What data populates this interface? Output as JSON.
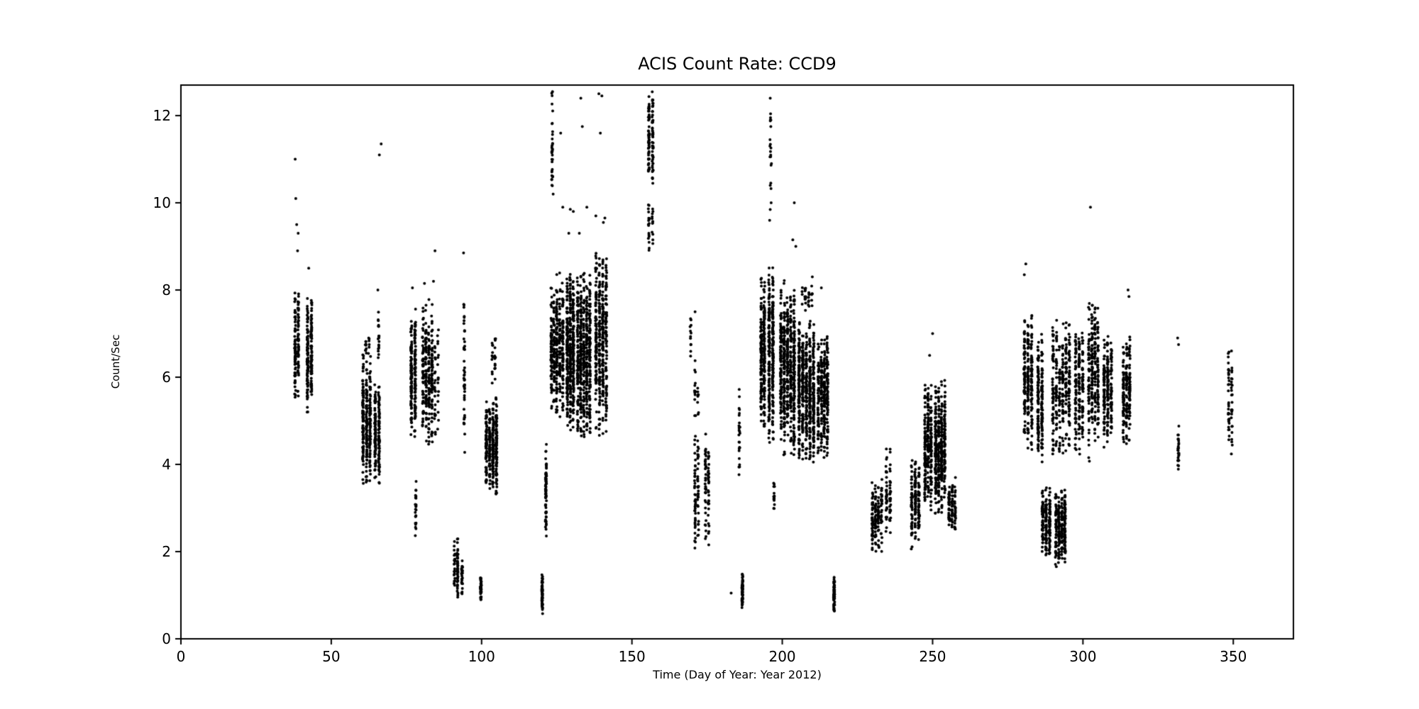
{
  "chart_data": {
    "type": "scatter",
    "title": "ACIS Count Rate: CCD9",
    "xlabel": "Time (Day of Year: Year 2012)",
    "ylabel": "Count/Sec",
    "xlim": [
      0,
      370
    ],
    "ylim": [
      0,
      12.7
    ],
    "xticks": [
      0,
      50,
      100,
      150,
      200,
      250,
      300,
      350
    ],
    "yticks": [
      0,
      2,
      4,
      6,
      8,
      10,
      12
    ],
    "grid": false,
    "legend": null,
    "marker": {
      "shape": "point",
      "color": "#000000",
      "radius_px": 2
    },
    "cluster_fields": [
      "x_min_day",
      "x_max_day",
      "y_min_cps",
      "y_max_cps",
      "n_points"
    ],
    "series": [
      {
        "name": "CCD9 count rate",
        "representation": "cluster-summary",
        "clusters": [
          [
            37.5,
            39.5,
            5.2,
            8.2,
            130
          ],
          [
            41.5,
            44.0,
            5.0,
            8.0,
            190
          ],
          [
            60.0,
            63.5,
            3.4,
            6.6,
            260
          ],
          [
            61.0,
            63.0,
            6.5,
            7.0,
            15
          ],
          [
            64.0,
            66.5,
            3.4,
            5.9,
            160
          ],
          [
            65.0,
            66.5,
            6.2,
            7.9,
            18
          ],
          [
            76.0,
            78.5,
            4.4,
            7.7,
            200
          ],
          [
            77.6,
            78.6,
            2.2,
            3.7,
            25
          ],
          [
            80.0,
            84.0,
            4.3,
            7.8,
            260
          ],
          [
            84.0,
            86.0,
            4.6,
            7.2,
            40
          ],
          [
            90.5,
            92.5,
            0.9,
            2.4,
            70
          ],
          [
            93.0,
            94.0,
            1.0,
            1.9,
            25
          ],
          [
            93.5,
            95.0,
            4.0,
            8.3,
            45
          ],
          [
            99.0,
            100.5,
            0.8,
            1.5,
            45
          ],
          [
            101.0,
            105.5,
            3.3,
            5.6,
            320
          ],
          [
            103.0,
            105.0,
            5.7,
            7.0,
            25
          ],
          [
            119.5,
            120.8,
            0.55,
            1.5,
            55
          ],
          [
            120.8,
            122.0,
            2.0,
            4.7,
            70
          ],
          [
            122.8,
            124.2,
            10.2,
            12.7,
            35
          ],
          [
            122.8,
            124.5,
            5.1,
            8.1,
            130
          ],
          [
            124.5,
            127.5,
            4.9,
            8.5,
            230
          ],
          [
            128.0,
            131.0,
            4.7,
            8.5,
            400
          ],
          [
            131.5,
            136.5,
            4.4,
            8.5,
            520
          ],
          [
            137.5,
            142.0,
            4.6,
            9.0,
            400
          ],
          [
            155.0,
            157.5,
            10.2,
            12.7,
            110
          ],
          [
            155.0,
            157.5,
            8.8,
            10.2,
            30
          ],
          [
            169.0,
            170.0,
            6.3,
            7.5,
            12
          ],
          [
            170.5,
            172.5,
            2.0,
            4.8,
            75
          ],
          [
            170.5,
            172.5,
            4.8,
            6.6,
            22
          ],
          [
            174.0,
            176.0,
            2.1,
            4.85,
            70
          ],
          [
            185.0,
            186.5,
            3.6,
            6.0,
            25
          ],
          [
            186.0,
            187.5,
            0.65,
            1.65,
            55
          ],
          [
            192.5,
            194.5,
            4.6,
            8.5,
            230
          ],
          [
            195.0,
            197.5,
            4.3,
            8.7,
            260
          ],
          [
            195.6,
            196.6,
            9.4,
            12.45,
            16
          ],
          [
            196.8,
            197.8,
            2.75,
            3.7,
            15
          ],
          [
            199.0,
            204.5,
            4.1,
            8.3,
            560
          ],
          [
            205.0,
            211.0,
            3.95,
            7.4,
            560
          ],
          [
            206.0,
            210.5,
            7.4,
            8.3,
            30
          ],
          [
            211.5,
            215.5,
            4.0,
            7.1,
            300
          ],
          [
            216.5,
            218.0,
            0.6,
            1.45,
            65
          ],
          [
            229.5,
            233.5,
            1.9,
            3.75,
            150
          ],
          [
            234.0,
            236.5,
            2.2,
            4.45,
            70
          ],
          [
            242.5,
            246.0,
            2.0,
            4.25,
            160
          ],
          [
            247.0,
            250.0,
            2.8,
            6.05,
            260
          ],
          [
            250.5,
            254.5,
            2.7,
            6.0,
            380
          ],
          [
            255.0,
            258.0,
            2.3,
            3.8,
            90
          ],
          [
            280.0,
            283.5,
            4.2,
            7.75,
            240
          ],
          [
            284.5,
            287.0,
            3.9,
            7.0,
            160
          ],
          [
            286.0,
            289.5,
            1.85,
            3.55,
            190
          ],
          [
            290.5,
            294.5,
            1.6,
            3.5,
            220
          ],
          [
            289.5,
            296.0,
            4.1,
            7.5,
            300
          ],
          [
            297.0,
            300.5,
            4.2,
            7.3,
            180
          ],
          [
            301.5,
            305.5,
            4.0,
            8.0,
            240
          ],
          [
            306.5,
            310.0,
            4.3,
            7.0,
            200
          ],
          [
            313.0,
            316.0,
            4.2,
            7.0,
            180
          ],
          [
            331.0,
            332.5,
            3.7,
            4.95,
            25
          ],
          [
            348.0,
            350.0,
            4.2,
            6.9,
            60
          ]
        ],
        "outlier_points": [
          [
            38.0,
            11.0
          ],
          [
            38.2,
            10.1
          ],
          [
            38.5,
            9.5
          ],
          [
            39.0,
            9.3
          ],
          [
            38.8,
            8.9
          ],
          [
            42.5,
            8.5
          ],
          [
            66.0,
            11.1
          ],
          [
            66.6,
            11.35
          ],
          [
            65.5,
            8.0
          ],
          [
            77.0,
            8.05
          ],
          [
            81.0,
            8.15
          ],
          [
            84.5,
            8.9
          ],
          [
            84.0,
            8.2
          ],
          [
            94.0,
            8.85
          ],
          [
            123.8,
            10.2
          ],
          [
            126.3,
            11.6
          ],
          [
            127.0,
            9.9
          ],
          [
            129.5,
            9.85
          ],
          [
            130.5,
            9.8
          ],
          [
            129.0,
            9.3
          ],
          [
            133.0,
            12.4
          ],
          [
            133.5,
            11.75
          ],
          [
            135.0,
            9.9
          ],
          [
            132.5,
            9.3
          ],
          [
            139.0,
            12.5
          ],
          [
            140.0,
            12.45
          ],
          [
            139.5,
            11.6
          ],
          [
            141.0,
            9.65
          ],
          [
            138.0,
            9.7
          ],
          [
            140.5,
            9.55
          ],
          [
            171.0,
            7.5
          ],
          [
            183.0,
            1.05
          ],
          [
            196.0,
            12.4
          ],
          [
            196.2,
            11.9
          ],
          [
            195.9,
            11.3
          ],
          [
            196.4,
            10.9
          ],
          [
            196.0,
            10.4
          ],
          [
            196.3,
            10.0
          ],
          [
            195.8,
            9.6
          ],
          [
            204.0,
            10.0
          ],
          [
            203.5,
            9.15
          ],
          [
            204.5,
            9.0
          ],
          [
            210.0,
            8.3
          ],
          [
            213.0,
            8.05
          ],
          [
            250.0,
            7.0
          ],
          [
            249.0,
            6.5
          ],
          [
            281.0,
            8.6
          ],
          [
            280.5,
            8.35
          ],
          [
            302.5,
            9.9
          ],
          [
            315.0,
            8.0
          ],
          [
            315.3,
            7.85
          ],
          [
            331.5,
            6.9
          ],
          [
            331.8,
            6.75
          ]
        ]
      }
    ]
  }
}
